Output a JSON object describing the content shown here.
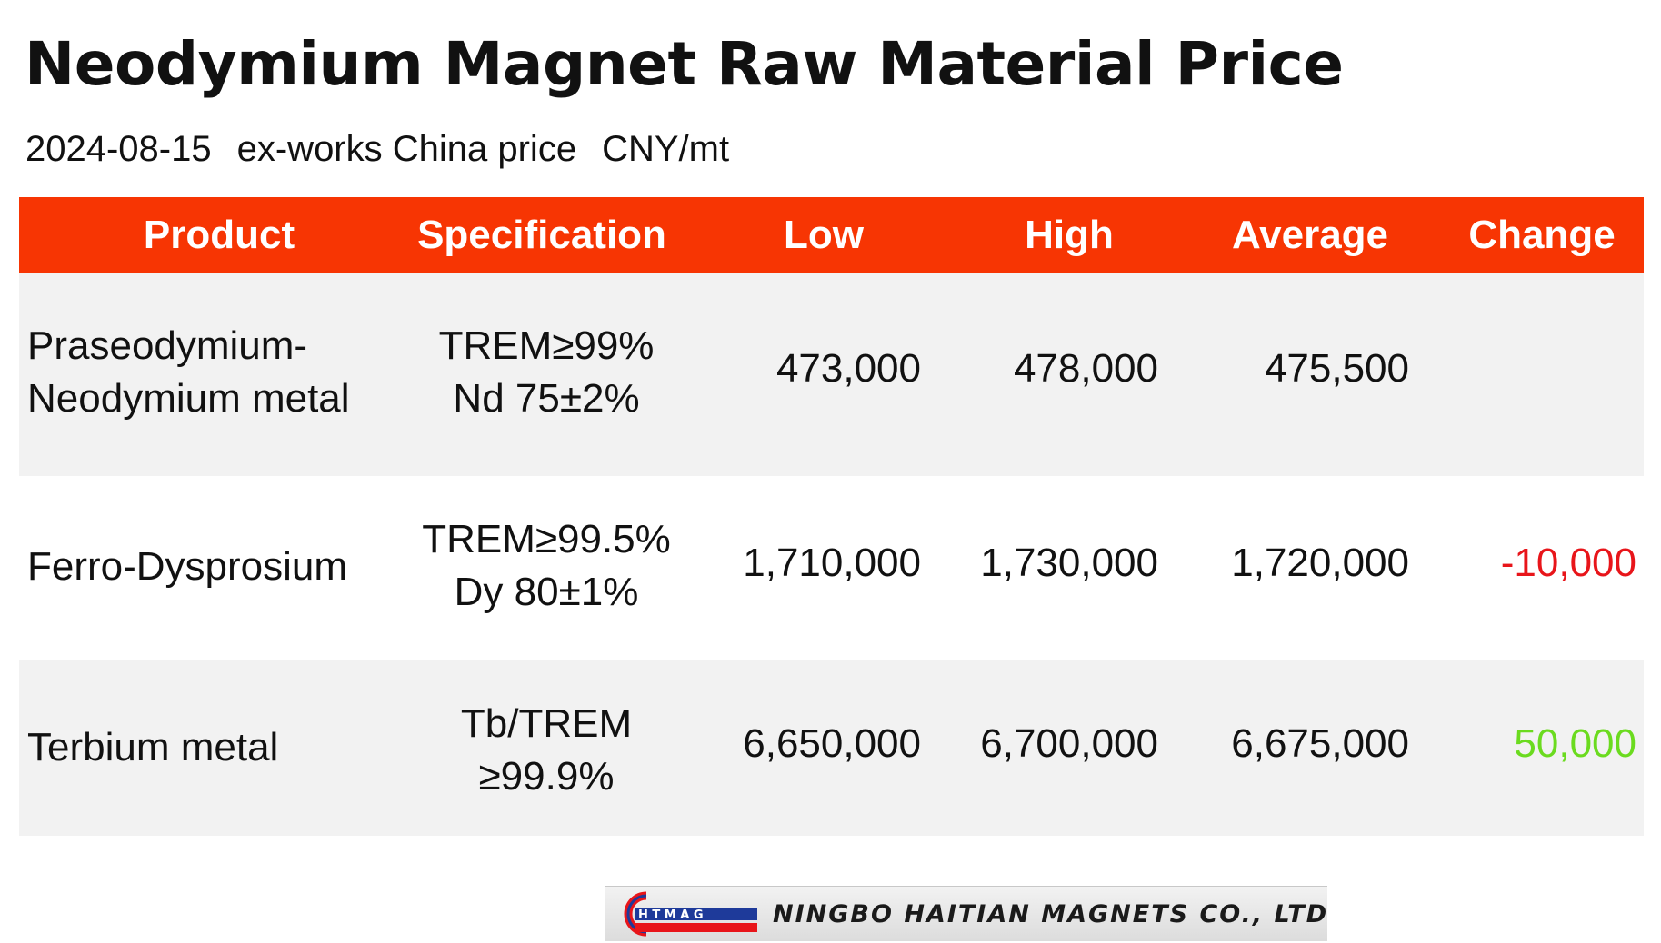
{
  "title": "Neodymium Magnet Raw Material Price",
  "subtitle": {
    "date": "2024-08-15",
    "basis": "ex-works China price",
    "unit": "CNY/mt"
  },
  "columns": [
    "Product",
    "Specification",
    "Low",
    "High",
    "Average",
    "Change"
  ],
  "rows": [
    {
      "product": [
        "Praseodymium-",
        "Neodymium metal"
      ],
      "spec": [
        "TREM≥99%",
        "Nd 75±2%"
      ],
      "low": "473,000",
      "high": "478,000",
      "average": "475,500",
      "change": ""
    },
    {
      "product": [
        "Ferro-Dysprosium"
      ],
      "spec": [
        "TREM≥99.5%",
        "Dy 80±1%"
      ],
      "low": "1,710,000",
      "high": "1,730,000",
      "average": "1,720,000",
      "change": "-10,000"
    },
    {
      "product": [
        "Terbium metal"
      ],
      "spec": [
        "Tb/TREM",
        "≥99.9%"
      ],
      "low": "6,650,000",
      "high": "6,700,000",
      "average": "6,675,000",
      "change": "50,000"
    }
  ],
  "colors": {
    "header": "#f73503",
    "negative": "#e8151a",
    "positive": "#6bdb1f",
    "row_shade": "#f2f2f2"
  },
  "footer": {
    "logo_mark": "HTMAG",
    "company": "NINGBO HAITIAN MAGNETS CO., LTD"
  }
}
